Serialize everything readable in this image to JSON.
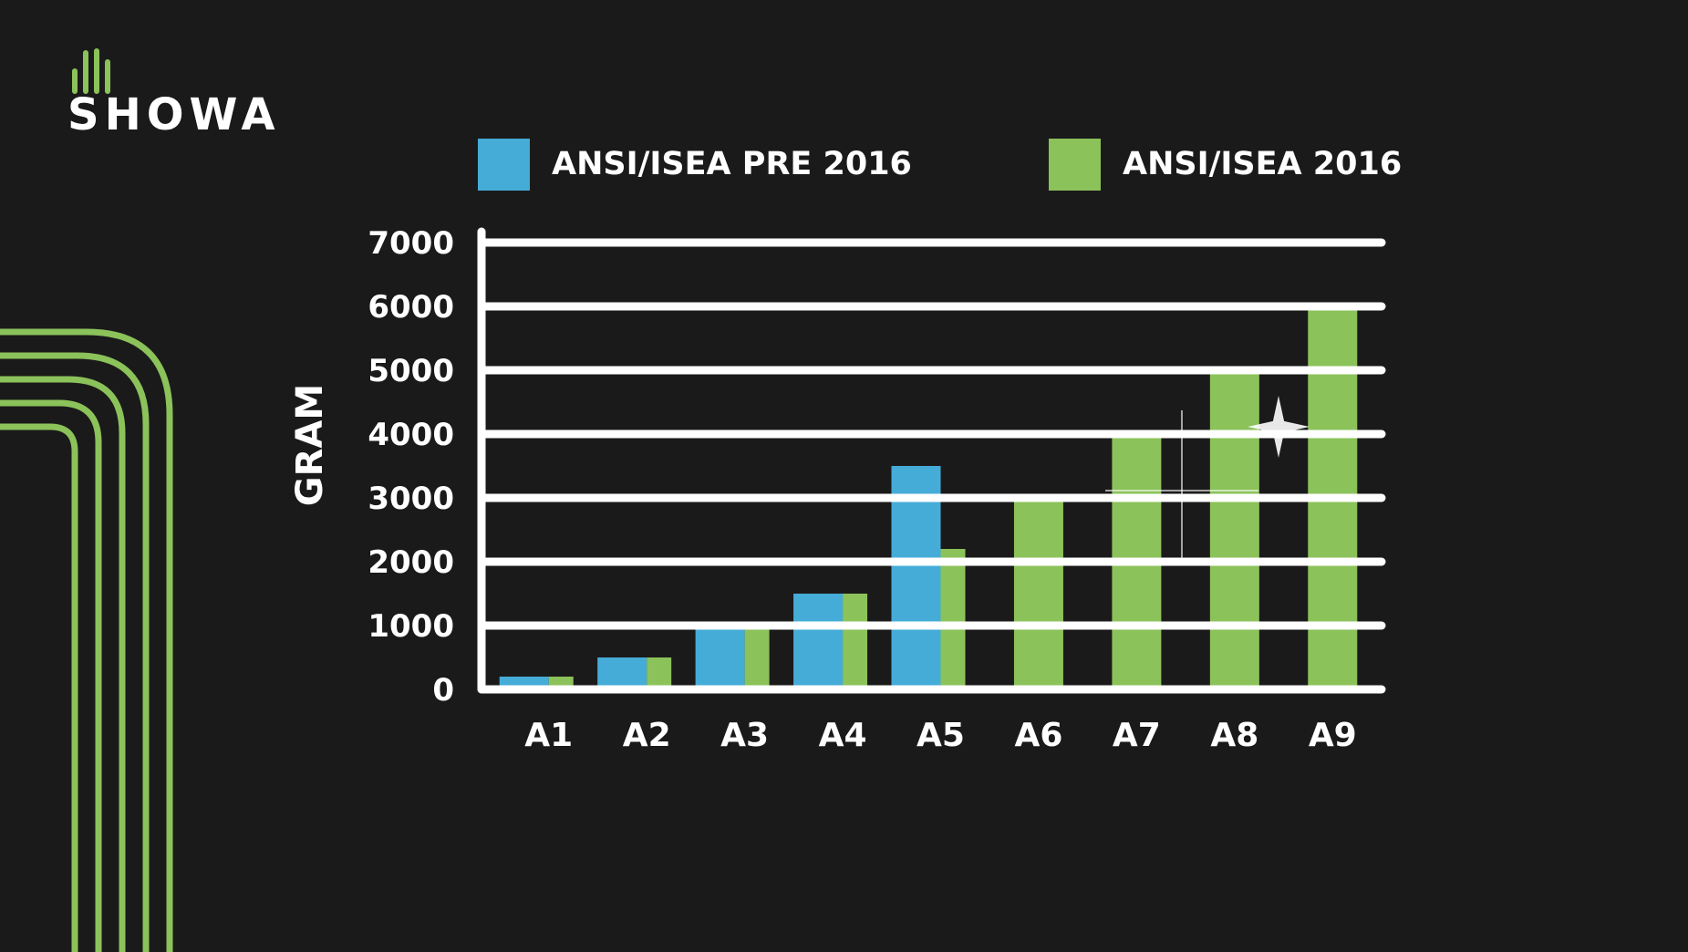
{
  "logo": {
    "text": "SHOWA"
  },
  "colors": {
    "background": "#1b1a1a",
    "pre2016": "#45acd8",
    "ansi2016": "#8bc25a",
    "grid": "#ffffff",
    "accent_lines": "#8bc25a"
  },
  "chart_data": {
    "type": "bar",
    "title": "",
    "xlabel": "",
    "ylabel": "GRAM",
    "ylim": [
      0,
      7000
    ],
    "yticks": [
      0,
      1000,
      2000,
      3000,
      4000,
      5000,
      6000,
      7000
    ],
    "grid": true,
    "legend_position": "top",
    "categories": [
      "A1",
      "A2",
      "A3",
      "A4",
      "A5",
      "A6",
      "A7",
      "A8",
      "A9"
    ],
    "series": [
      {
        "name": "ANSI/ISEA PRE 2016",
        "color": "#45acd8",
        "values": [
          200,
          500,
          1000,
          1500,
          3500,
          null,
          null,
          null,
          null
        ]
      },
      {
        "name": "ANSI/ISEA 2016",
        "color": "#8bc25a",
        "values": [
          200,
          500,
          1000,
          1500,
          2200,
          3000,
          4000,
          5000,
          6000
        ]
      }
    ]
  }
}
